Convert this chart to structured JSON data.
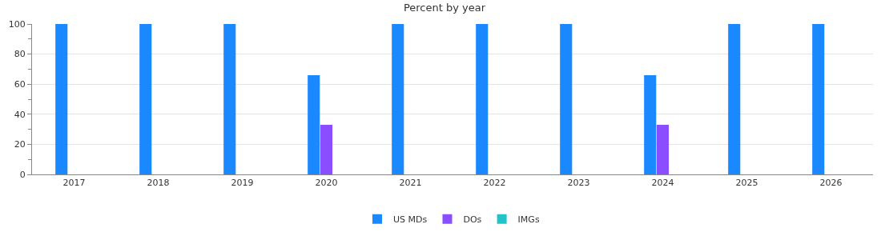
{
  "chart_data": {
    "type": "bar",
    "title": "Percent by year",
    "categories": [
      "2017",
      "2018",
      "2019",
      "2020",
      "2021",
      "2022",
      "2023",
      "2024",
      "2025",
      "2026"
    ],
    "series": [
      {
        "name": "US MDs",
        "color": "#1a88ff",
        "values": [
          100,
          100,
          100,
          66,
          100,
          100,
          100,
          66,
          100,
          100
        ]
      },
      {
        "name": "DOs",
        "color": "#8a4dff",
        "values": [
          0,
          0,
          0,
          33,
          0,
          0,
          0,
          33,
          0,
          0
        ]
      },
      {
        "name": "IMGs",
        "color": "#20c4c8",
        "values": [
          0,
          0,
          0,
          0,
          0,
          0,
          0,
          0,
          0,
          0
        ]
      }
    ],
    "ylim": [
      0,
      100
    ],
    "yticks": [
      0,
      {
        "value": 10,
        "label": null
      },
      20,
      {
        "value": 30,
        "label": null
      },
      40,
      {
        "value": 50,
        "label": null
      },
      60,
      {
        "value": 70,
        "label": null
      },
      80,
      {
        "value": 90,
        "label": null
      },
      100
    ],
    "grid": "y",
    "legend": "bottom"
  }
}
